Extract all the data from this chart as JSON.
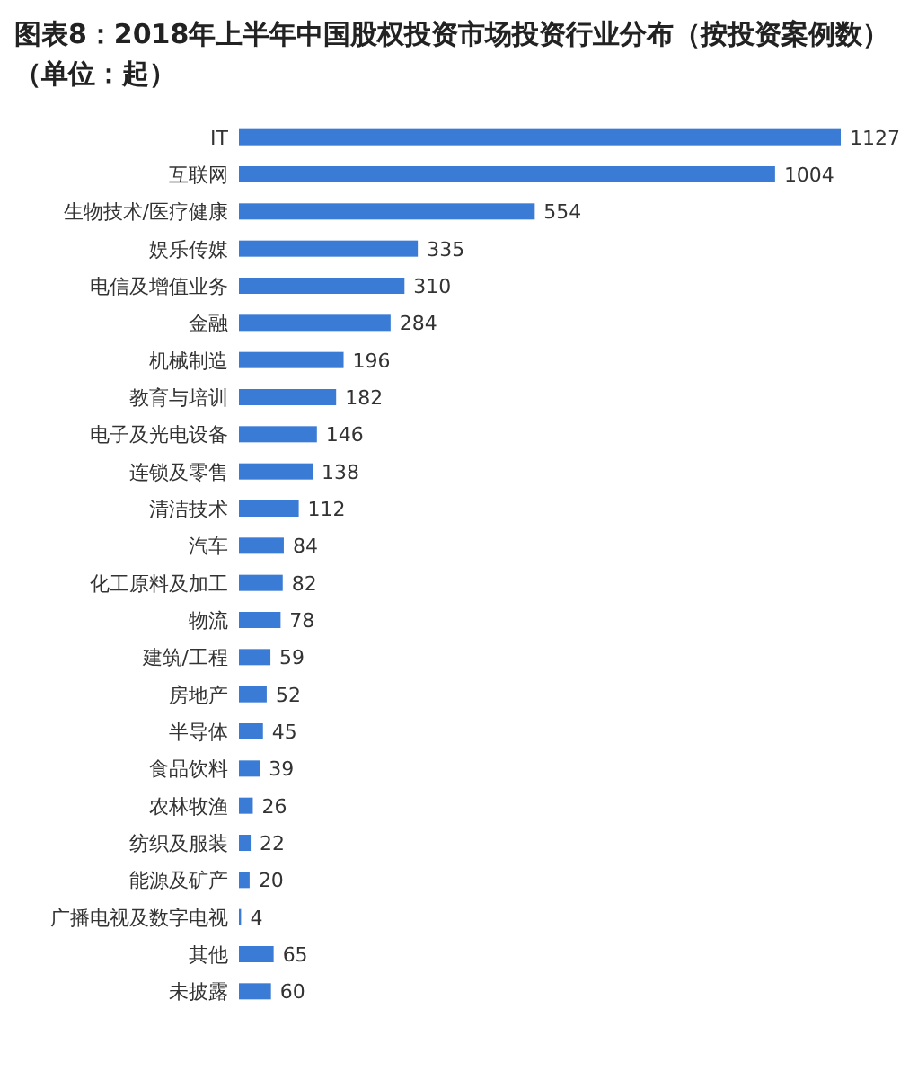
{
  "chart_data": {
    "type": "bar",
    "orientation": "horizontal",
    "title": "图表8：2018年上半年中国股权投资市场投资行业分布（按投资案例数）（单位：起）",
    "categories": [
      "IT",
      "互联网",
      "生物技术/医疗健康",
      "娱乐传媒",
      "电信及增值业务",
      "金融",
      "机械制造",
      "教育与培训",
      "电子及光电设备",
      "连锁及零售",
      "清洁技术",
      "汽车",
      "化工原料及加工",
      "物流",
      "建筑/工程",
      "房地产",
      "半导体",
      "食品饮料",
      "农林牧渔",
      "纺织及服装",
      "能源及矿产",
      "广播电视及数字电视",
      "其他",
      "未披露"
    ],
    "values": [
      1127,
      1004,
      554,
      335,
      310,
      284,
      196,
      182,
      146,
      138,
      112,
      84,
      82,
      78,
      59,
      52,
      45,
      39,
      26,
      22,
      20,
      4,
      65,
      60
    ],
    "color": "#3a7bd5",
    "data_labels": true
  }
}
